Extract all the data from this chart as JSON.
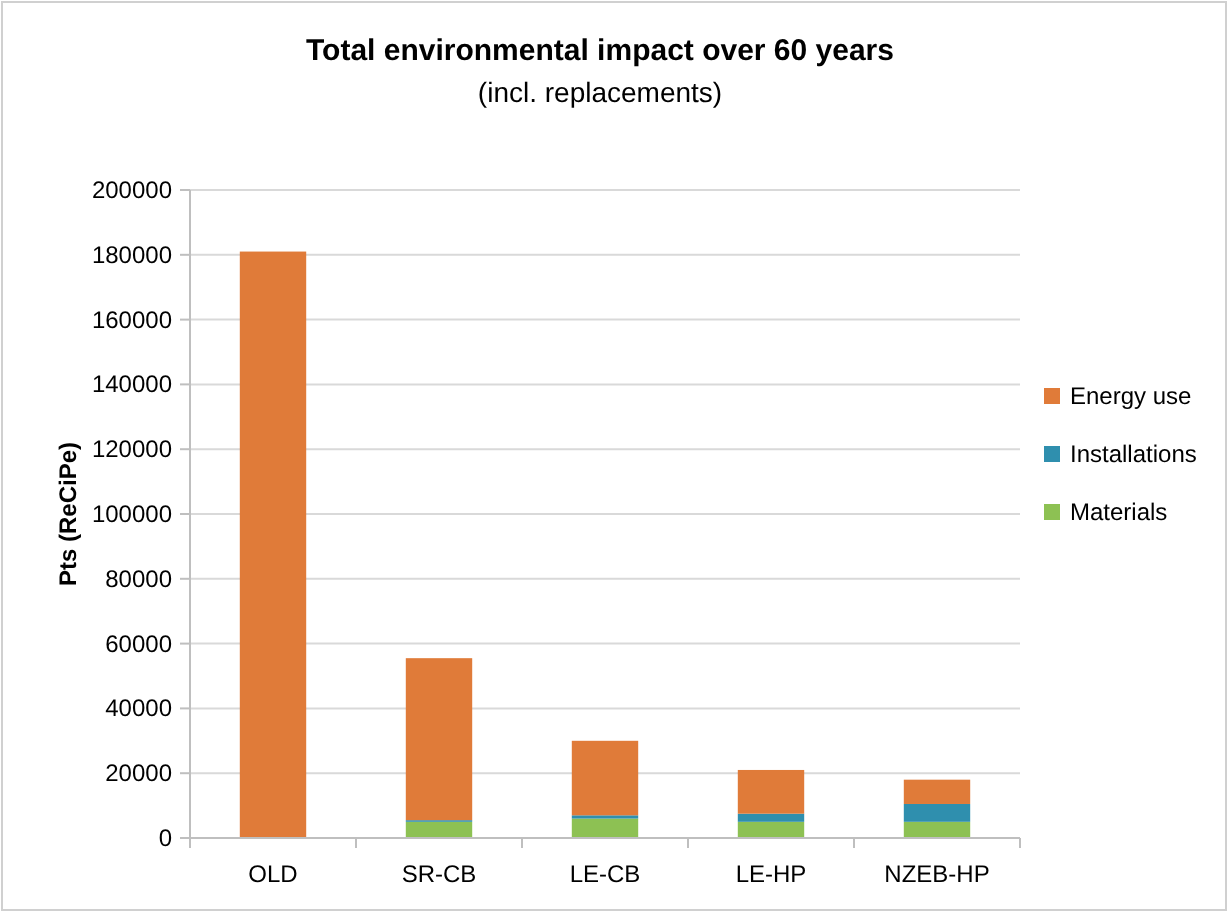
{
  "chart_data": {
    "type": "bar",
    "title": "Total environmental impact over 60 years",
    "subtitle": "(incl. replacements)",
    "ylabel": "Pts (ReCiPe)",
    "categories": [
      "OLD",
      "SR-CB",
      "LE-CB",
      "LE-HP",
      "NZEB-HP"
    ],
    "series": [
      {
        "name": "Materials",
        "color": "#8dc153",
        "values": [
          0,
          5000,
          6000,
          5000,
          5000
        ]
      },
      {
        "name": "Installations",
        "color": "#2f8fae",
        "values": [
          0,
          500,
          1000,
          2500,
          5500
        ]
      },
      {
        "name": "Energy use",
        "color": "#e07b39",
        "values": [
          181000,
          50000,
          23000,
          13500,
          7500
        ]
      }
    ],
    "stacked": true,
    "ylim": [
      0,
      200000
    ],
    "yticks": [
      0,
      20000,
      40000,
      60000,
      80000,
      100000,
      120000,
      140000,
      160000,
      180000,
      200000
    ],
    "grid": "y",
    "legend": "right"
  }
}
